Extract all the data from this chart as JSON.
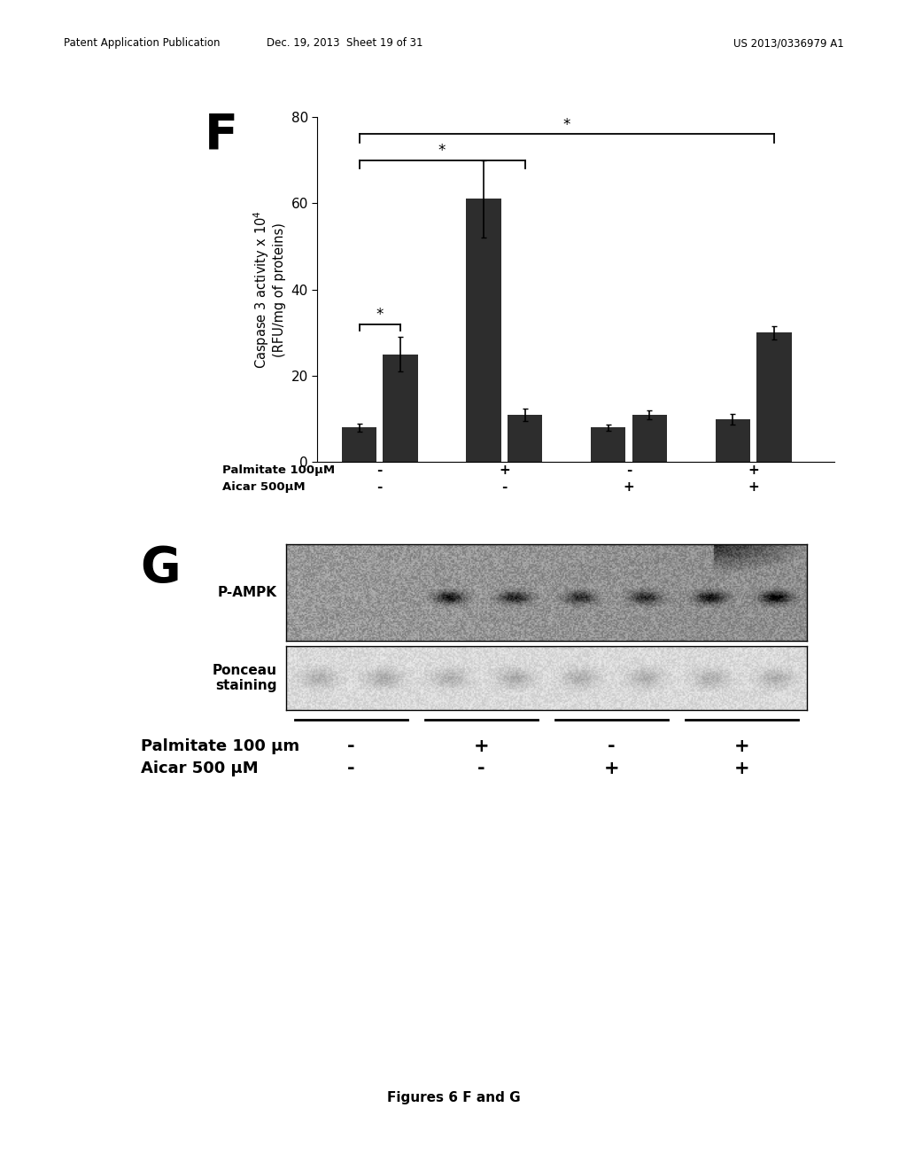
{
  "header_left": "Patent Application Publication",
  "header_center": "Dec. 19, 2013  Sheet 19 of 31",
  "header_right": "US 2013/0336979 A1",
  "panel_F_label": "F",
  "panel_G_label": "G",
  "bar_groups": [
    {
      "bars": [
        8,
        25
      ],
      "errors": [
        1.0,
        4.0
      ]
    },
    {
      "bars": [
        61,
        11
      ],
      "errors": [
        9.0,
        1.5
      ]
    },
    {
      "bars": [
        8,
        11
      ],
      "errors": [
        0.8,
        1.0
      ]
    },
    {
      "bars": [
        10,
        30
      ],
      "errors": [
        1.2,
        1.5
      ]
    }
  ],
  "bar_color": "#2d2d2d",
  "bar_width": 0.28,
  "ylim": [
    0,
    80
  ],
  "yticks": [
    0,
    20,
    40,
    60,
    80
  ],
  "palmitate_label_F": "Palmitate 100μM",
  "aicar_label_F": "Aicar 500μM",
  "palmitate_signs_F": [
    "-",
    "+",
    "-",
    "+"
  ],
  "aicar_signs_F": [
    "-",
    "-",
    "+",
    "+"
  ],
  "palmitate_label_G": "Palmitate 100 μm",
  "aicar_label_G": "Aicar 500 μM",
  "palmitate_signs_G": [
    "-",
    "+",
    "-",
    "+"
  ],
  "aicar_signs_G": [
    "-",
    "-",
    "+",
    "+"
  ],
  "blot_label_1": "P-AMPK",
  "blot_label_2": "Ponceau\nstaining",
  "caption": "Figures 6 F and G",
  "background_color": "#ffffff"
}
